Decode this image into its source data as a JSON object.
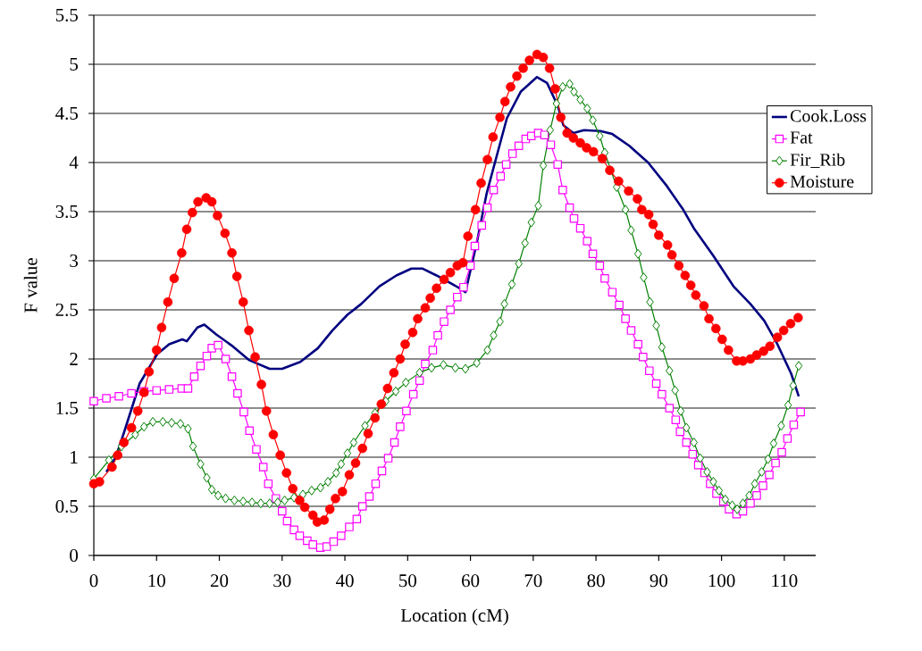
{
  "chart_data": {
    "type": "line",
    "xlabel": "Location (cM)",
    "ylabel": "F value",
    "xlim": [
      0,
      115
    ],
    "ylim": [
      0,
      5.5
    ],
    "xticks": [
      0,
      10,
      20,
      30,
      40,
      50,
      60,
      70,
      80,
      90,
      100,
      110
    ],
    "yticks": [
      0,
      0.5,
      1,
      1.5,
      2,
      2.5,
      3,
      3.5,
      4,
      4.5,
      5,
      5.5
    ],
    "grid": "y",
    "legend": "top right",
    "series": [
      {
        "name": "Cook.Loss",
        "color": "#000080",
        "marker": "none",
        "x": [
          2,
          3.5,
          4.8,
          7.3,
          10.1,
          12,
          14.1,
          14.8,
          16.5,
          17.6,
          19.5,
          21.9,
          24.7,
          28,
          30,
          32.9,
          35.7,
          38,
          40.4,
          42.6,
          45.5,
          48.2,
          50.6,
          52.4,
          54.6,
          58.3,
          59.2,
          61,
          62.6,
          64.2,
          65.8,
          68,
          70.6,
          72.2,
          73.9,
          74.8,
          76.4,
          78.1,
          80.7,
          82.6,
          85.3,
          88.3,
          91.3,
          93.9,
          95.6,
          98.7,
          101.9,
          104.6,
          106.8,
          108.9,
          111.1,
          112.3
        ],
        "values": [
          0.85,
          1.0,
          1.25,
          1.75,
          2.05,
          2.15,
          2.2,
          2.18,
          2.32,
          2.35,
          2.25,
          2.14,
          1.99,
          1.9,
          1.9,
          1.97,
          2.11,
          2.29,
          2.45,
          2.56,
          2.74,
          2.85,
          2.92,
          2.92,
          2.85,
          2.72,
          2.68,
          3.18,
          3.69,
          4.07,
          4.45,
          4.72,
          4.87,
          4.81,
          4.58,
          4.38,
          4.3,
          4.33,
          4.32,
          4.29,
          4.17,
          4.0,
          3.76,
          3.52,
          3.33,
          3.05,
          2.74,
          2.56,
          2.39,
          2.15,
          1.85,
          1.62
        ]
      },
      {
        "name": "Fat",
        "color": "#ff00ff",
        "marker": "square",
        "x": [
          0,
          2,
          4,
          6,
          8,
          10,
          12,
          14,
          15,
          16,
          17,
          18,
          18.8,
          19.8,
          21,
          22,
          22.9,
          23.9,
          24.8,
          25.9,
          27,
          27.8,
          29,
          30,
          30.8,
          31.9,
          32.8,
          34,
          34.9,
          36.1,
          37.1,
          38.2,
          39.4,
          40.7,
          41.9,
          42.8,
          43.9,
          44.9,
          45.9,
          46.9,
          47.9,
          48.8,
          49.8,
          50.9,
          51.9,
          52.8,
          54,
          54.8,
          55.8,
          56.8,
          57.9,
          58.9,
          60,
          60.7,
          61.8,
          62.7,
          63.7,
          64.8,
          65.7,
          66.7,
          67.7,
          68.8,
          69.7,
          70.8,
          71.8,
          72.8,
          73.9,
          74.7,
          75.8,
          76.5,
          77.5,
          78.6,
          79.5,
          80.6,
          81.4,
          82.6,
          83.7,
          84.7,
          85.6,
          86.7,
          87.5,
          88.5,
          89.6,
          90.5,
          91.7,
          92.7,
          93.4,
          94.4,
          95.4,
          96.3,
          97.3,
          98.2,
          99.2,
          100.3,
          101.2,
          102.4,
          103.4,
          104.6,
          105.6,
          106.6,
          107.6,
          108.6,
          109.6,
          110.5,
          111.5,
          112.6
        ],
        "values": [
          1.57,
          1.6,
          1.62,
          1.65,
          1.67,
          1.68,
          1.69,
          1.7,
          1.7,
          1.82,
          1.93,
          2.03,
          2.11,
          2.14,
          2.0,
          1.82,
          1.65,
          1.46,
          1.27,
          1.08,
          0.9,
          0.73,
          0.58,
          0.45,
          0.35,
          0.26,
          0.2,
          0.15,
          0.11,
          0.08,
          0.09,
          0.14,
          0.2,
          0.29,
          0.37,
          0.5,
          0.6,
          0.73,
          0.86,
          0.99,
          1.15,
          1.31,
          1.47,
          1.64,
          1.78,
          1.95,
          2.09,
          2.24,
          2.38,
          2.5,
          2.63,
          2.73,
          2.95,
          3.15,
          3.36,
          3.54,
          3.72,
          3.86,
          3.98,
          4.09,
          4.17,
          4.24,
          4.27,
          4.3,
          4.28,
          4.18,
          3.98,
          3.72,
          3.54,
          3.43,
          3.33,
          3.2,
          3.07,
          2.95,
          2.82,
          2.68,
          2.55,
          2.41,
          2.29,
          2.15,
          2.02,
          1.88,
          1.75,
          1.64,
          1.5,
          1.38,
          1.26,
          1.15,
          1.03,
          0.92,
          0.84,
          0.73,
          0.63,
          0.55,
          0.47,
          0.42,
          0.45,
          0.53,
          0.61,
          0.71,
          0.82,
          0.94,
          1.05,
          1.19,
          1.33,
          1.46
        ]
      },
      {
        "name": "Fir_Rib",
        "color": "#008000",
        "marker": "diamond",
        "x": [
          0,
          2.4,
          4.4,
          6.6,
          8,
          9.4,
          11,
          12.4,
          13.8,
          15,
          15.8,
          17,
          18,
          18.8,
          19.8,
          21,
          22.4,
          23.8,
          25.2,
          26.6,
          28,
          29.3,
          30.4,
          31.9,
          33.3,
          34.7,
          36.1,
          37.3,
          38.6,
          39.4,
          40.4,
          41.4,
          43.2,
          44.8,
          46.5,
          48.1,
          49.7,
          51.9,
          53.8,
          55.7,
          57.6,
          59.2,
          61,
          62.7,
          63.7,
          64.7,
          65.4,
          66.6,
          67.7,
          68.7,
          69.7,
          70.8,
          71.6,
          72.7,
          73.7,
          74.7,
          75.8,
          76.5,
          77.5,
          78.6,
          79.5,
          80.6,
          81.4,
          83.3,
          84.7,
          85.6,
          86.7,
          87.6,
          88.6,
          89.6,
          90.5,
          91.7,
          92.6,
          93.5,
          94.4,
          95.6,
          96.6,
          97.7,
          98.7,
          99.6,
          100.6,
          101.7,
          102.5,
          103.4,
          104.4,
          105.3,
          106.4,
          107.4,
          108.3,
          109.5,
          110.6,
          111.4,
          112.3
        ],
        "values": [
          0.78,
          0.97,
          1.11,
          1.23,
          1.31,
          1.36,
          1.36,
          1.35,
          1.34,
          1.29,
          1.11,
          0.93,
          0.79,
          0.67,
          0.61,
          0.58,
          0.56,
          0.55,
          0.54,
          0.53,
          0.53,
          0.54,
          0.56,
          0.59,
          0.62,
          0.66,
          0.69,
          0.75,
          0.84,
          0.93,
          1.04,
          1.15,
          1.32,
          1.45,
          1.57,
          1.67,
          1.76,
          1.86,
          1.91,
          1.94,
          1.91,
          1.9,
          1.96,
          2.09,
          2.24,
          2.38,
          2.56,
          2.76,
          2.97,
          3.18,
          3.39,
          3.56,
          3.97,
          4.33,
          4.6,
          4.77,
          4.8,
          4.72,
          4.64,
          4.55,
          4.43,
          4.27,
          4.1,
          3.75,
          3.52,
          3.31,
          3.07,
          2.83,
          2.58,
          2.34,
          2.12,
          1.88,
          1.68,
          1.47,
          1.3,
          1.15,
          0.99,
          0.85,
          0.75,
          0.66,
          0.57,
          0.51,
          0.47,
          0.53,
          0.61,
          0.73,
          0.85,
          0.98,
          1.14,
          1.32,
          1.53,
          1.73,
          1.93
        ]
      },
      {
        "name": "Moisture",
        "color": "#ff0000",
        "marker": "circle",
        "x": [
          0,
          0.9,
          2.9,
          3.8,
          4.8,
          6,
          7,
          8,
          8.8,
          10,
          10.8,
          11.8,
          12.8,
          14,
          14.8,
          15.7,
          16.6,
          17.9,
          18.8,
          19.7,
          20.9,
          22,
          22.8,
          23.8,
          24.7,
          25.7,
          26.7,
          27.5,
          28.6,
          29.7,
          30.7,
          31.7,
          32.8,
          33.6,
          34.9,
          35.6,
          36.7,
          37.6,
          38.5,
          39.6,
          40.7,
          41.7,
          42.8,
          43.7,
          44.8,
          45.8,
          46.8,
          47.8,
          48.8,
          49.6,
          50.8,
          51.6,
          52.8,
          53.6,
          54.6,
          55.8,
          56.8,
          57.9,
          58.8,
          59.6,
          60.8,
          61.7,
          62.7,
          63.6,
          64.7,
          65.5,
          66.4,
          67.4,
          68.4,
          69.4,
          70.6,
          71.6,
          72.6,
          73.5,
          74.4,
          75.4,
          76.4,
          77.5,
          78.5,
          79.6,
          81,
          82.2,
          83.6,
          85.2,
          86.6,
          87.3,
          88.4,
          89.1,
          90,
          91.4,
          92.1,
          93.2,
          94.2,
          95.1,
          95.9,
          97.2,
          98,
          99.1,
          100.1,
          101.1,
          102.4,
          103.4,
          104.6,
          105.6,
          106.7,
          107.7,
          108.9,
          109.9,
          111,
          112.2
        ],
        "values": [
          0.73,
          0.75,
          0.9,
          1.02,
          1.15,
          1.3,
          1.47,
          1.66,
          1.87,
          2.09,
          2.32,
          2.58,
          2.82,
          3.08,
          3.32,
          3.49,
          3.6,
          3.64,
          3.6,
          3.46,
          3.28,
          3.08,
          2.84,
          2.58,
          2.29,
          2.02,
          1.74,
          1.47,
          1.23,
          1.02,
          0.84,
          0.68,
          0.56,
          0.49,
          0.41,
          0.34,
          0.36,
          0.47,
          0.58,
          0.65,
          0.82,
          0.94,
          1.09,
          1.24,
          1.4,
          1.54,
          1.7,
          1.86,
          2.0,
          2.15,
          2.27,
          2.41,
          2.52,
          2.62,
          2.72,
          2.81,
          2.88,
          2.95,
          2.98,
          3.25,
          3.52,
          3.79,
          4.03,
          4.26,
          4.46,
          4.62,
          4.77,
          4.88,
          4.96,
          5.04,
          5.1,
          5.07,
          4.96,
          4.75,
          4.46,
          4.3,
          4.25,
          4.2,
          4.15,
          4.11,
          4.04,
          3.92,
          3.81,
          3.71,
          3.63,
          3.52,
          3.47,
          3.37,
          3.26,
          3.16,
          3.06,
          2.95,
          2.85,
          2.75,
          2.65,
          2.54,
          2.41,
          2.31,
          2.2,
          2.09,
          1.98,
          1.98,
          2.0,
          2.04,
          2.08,
          2.13,
          2.22,
          2.29,
          2.36,
          2.42
        ]
      }
    ]
  }
}
